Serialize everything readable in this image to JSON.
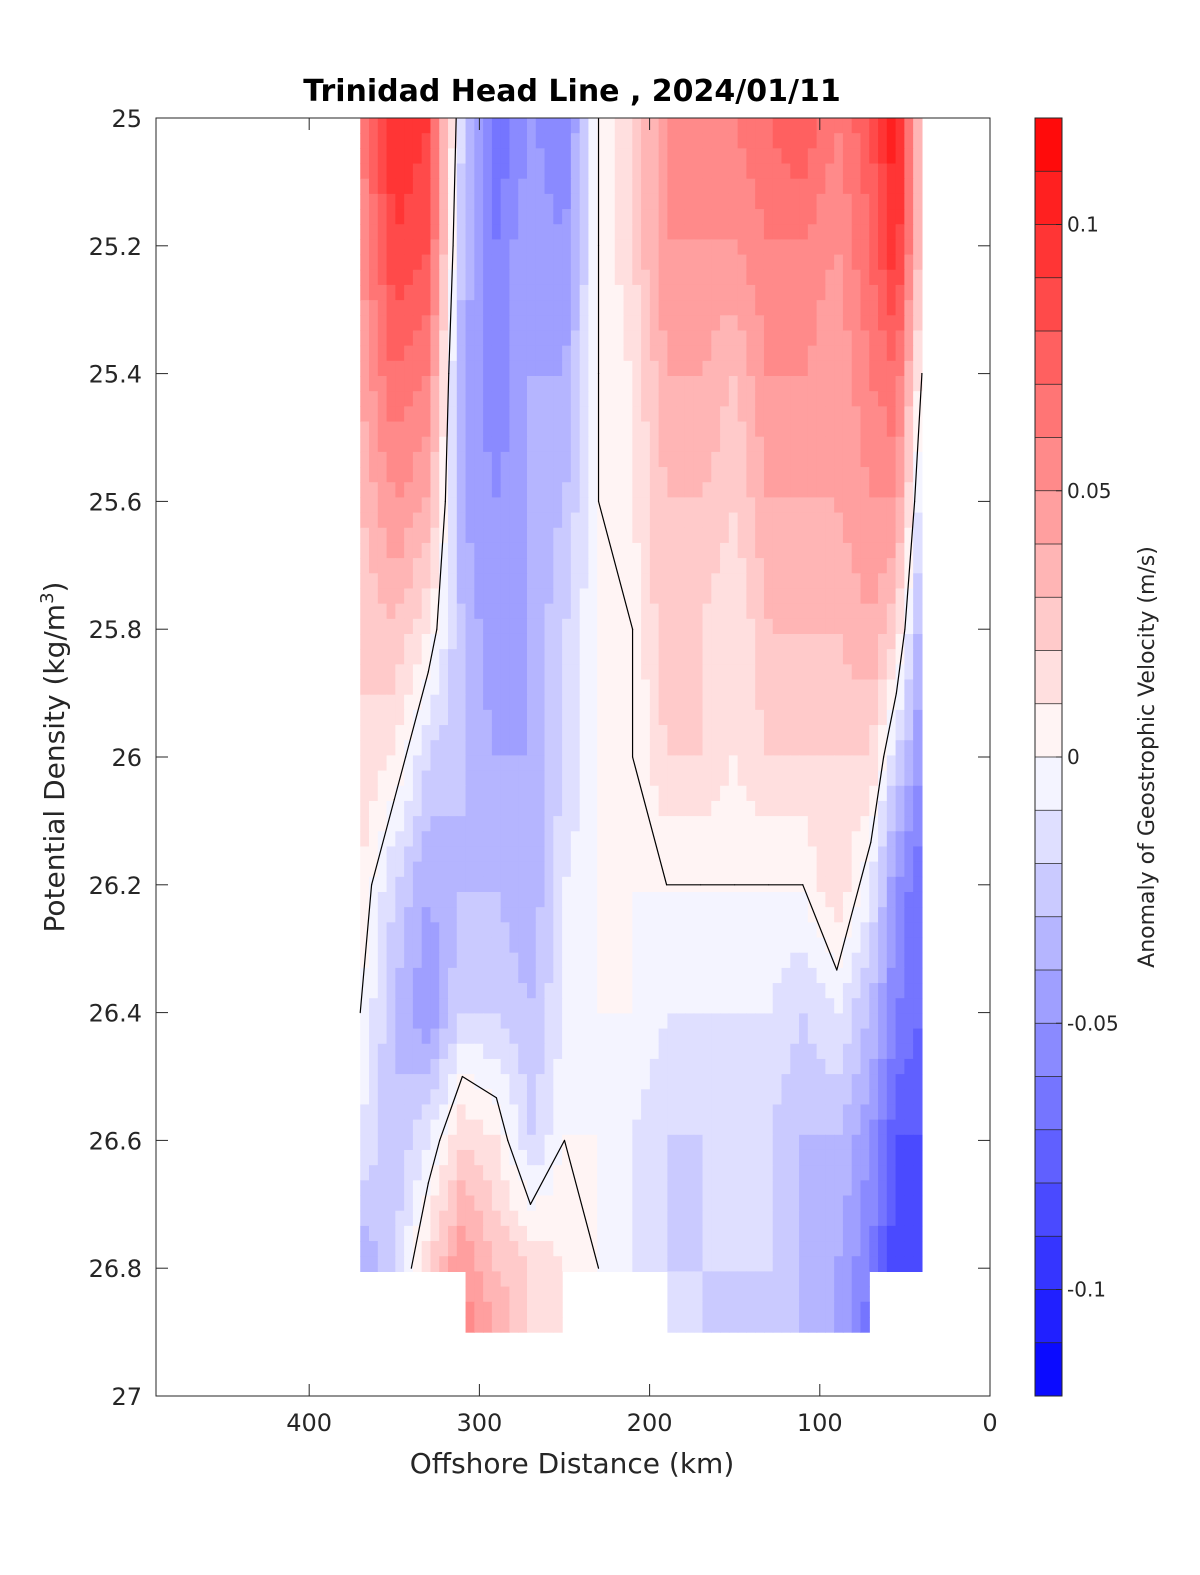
{
  "chart_data": {
    "type": "heatmap",
    "title": "Trinidad Head Line , 2024/01/11",
    "xlabel": "Offshore Distance (km)",
    "ylabel": "Potential Density (kg/m³)",
    "ylabel_parts": {
      "main": "Potential Density (kg/m",
      "sup": "3",
      "close": ")"
    },
    "colorbar_label": "Anomaly of Geostrophic Velocity (m/s)",
    "xlim": [
      490,
      0
    ],
    "x_reversed": true,
    "ylim": [
      27,
      25
    ],
    "y_reversed": true,
    "x_ticks": [
      400,
      300,
      200,
      100,
      0
    ],
    "y_ticks": [
      25,
      25.2,
      25.4,
      25.6,
      25.8,
      26,
      26.2,
      26.4,
      26.6,
      26.8,
      27
    ],
    "x_tick_labels": [
      "400",
      "300",
      "200",
      "100",
      "0"
    ],
    "y_tick_labels": [
      "25",
      "25.2",
      "25.4",
      "25.6",
      "25.8",
      "26",
      "26.2",
      "26.4",
      "26.6",
      "26.8",
      "27"
    ],
    "colorbar_range": [
      -0.12,
      0.12
    ],
    "colorbar_ticks": [
      0.1,
      0.05,
      0,
      -0.05,
      -0.1
    ],
    "colorbar_tick_labels": [
      "0.1",
      "0.05",
      "0",
      "-0.05",
      "-0.1"
    ],
    "colorbar_levels": 24,
    "colormap": [
      "#0000ff",
      "#ffffff",
      "#ff0000"
    ],
    "contour_level": 0,
    "grid": false,
    "x": [
      370,
      350,
      330,
      310,
      290,
      270,
      250,
      230,
      210,
      190,
      170,
      150,
      130,
      110,
      90,
      70,
      55,
      40
    ],
    "y": [
      25.0,
      25.2,
      25.4,
      25.6,
      25.8,
      26.0,
      26.2,
      26.4,
      26.6,
      26.8,
      26.9
    ],
    "z": [
      [
        0.06,
        0.1,
        0.09,
        -0.02,
        -0.07,
        -0.05,
        -0.06,
        0.0,
        0.02,
        0.05,
        0.06,
        0.06,
        0.07,
        0.08,
        0.06,
        0.08,
        0.11,
        0.02
      ],
      [
        0.05,
        0.09,
        0.08,
        -0.03,
        -0.06,
        -0.04,
        -0.05,
        0.0,
        0.02,
        0.05,
        0.05,
        0.05,
        0.06,
        0.06,
        0.05,
        0.07,
        0.1,
        0.02
      ],
      [
        0.04,
        0.07,
        0.06,
        -0.04,
        -0.06,
        -0.04,
        -0.04,
        0.0,
        0.01,
        0.04,
        0.04,
        0.03,
        0.05,
        0.05,
        0.04,
        0.06,
        0.07,
        0.0
      ],
      [
        0.03,
        0.05,
        0.04,
        -0.04,
        -0.05,
        -0.04,
        -0.03,
        0.0,
        0.01,
        0.03,
        0.03,
        0.02,
        0.04,
        0.04,
        0.04,
        0.05,
        0.05,
        -0.02
      ],
      [
        0.02,
        0.03,
        0.01,
        -0.03,
        -0.05,
        -0.04,
        -0.02,
        0.0,
        0.0,
        0.03,
        0.02,
        0.01,
        0.03,
        0.03,
        0.03,
        0.04,
        0.02,
        -0.04
      ],
      [
        0.02,
        0.01,
        -0.02,
        -0.03,
        -0.04,
        -0.04,
        -0.02,
        0.0,
        0.0,
        0.02,
        0.02,
        0.01,
        0.02,
        0.02,
        0.02,
        0.02,
        -0.02,
        -0.05
      ],
      [
        0.01,
        -0.02,
        -0.04,
        -0.03,
        -0.03,
        -0.04,
        -0.01,
        0.0,
        0.0,
        0.0,
        0.0,
        0.0,
        0.0,
        0.0,
        0.02,
        -0.01,
        -0.05,
        -0.07
      ],
      [
        0.0,
        -0.03,
        -0.05,
        -0.02,
        -0.02,
        -0.03,
        -0.01,
        0.0,
        0.0,
        -0.01,
        -0.01,
        -0.01,
        -0.01,
        -0.02,
        -0.01,
        -0.03,
        -0.06,
        -0.07
      ],
      [
        -0.01,
        -0.03,
        -0.01,
        0.02,
        0.01,
        -0.02,
        0.0,
        0.0,
        -0.01,
        -0.02,
        -0.02,
        -0.01,
        -0.02,
        -0.03,
        -0.03,
        -0.05,
        -0.08,
        -0.08
      ],
      [
        -0.04,
        -0.02,
        0.02,
        0.05,
        0.03,
        0.02,
        0.01,
        0.0,
        -0.01,
        -0.02,
        -0.02,
        -0.02,
        -0.02,
        -0.03,
        -0.04,
        -0.06,
        -0.09,
        -0.09
      ],
      [
        null,
        null,
        null,
        0.06,
        0.04,
        0.02,
        0.01,
        null,
        null,
        -0.01,
        -0.02,
        -0.02,
        -0.02,
        -0.03,
        -0.04,
        -0.07,
        null,
        null
      ]
    ]
  }
}
